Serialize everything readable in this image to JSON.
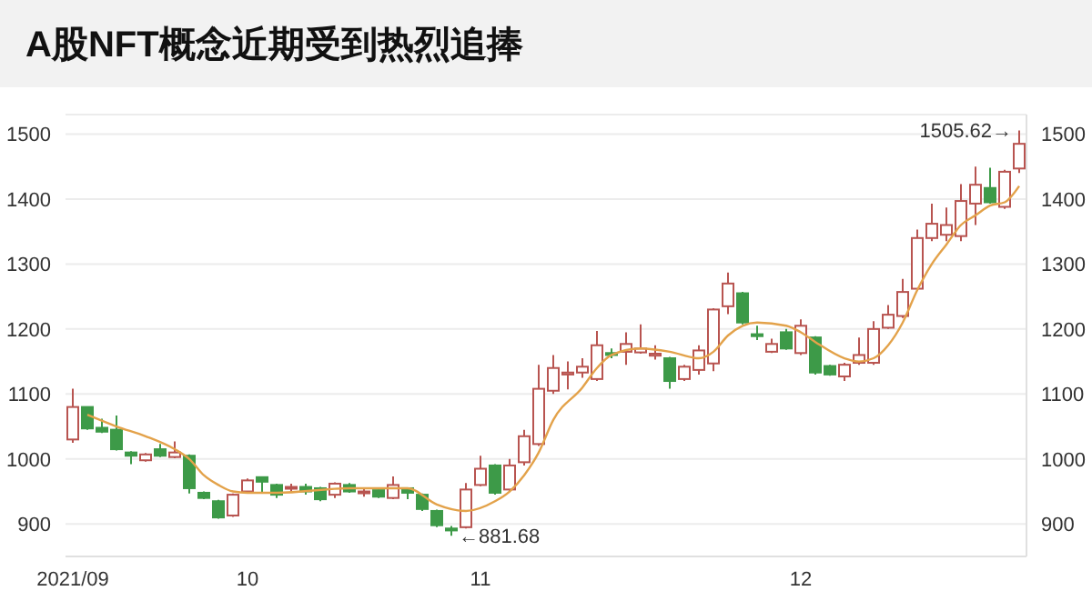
{
  "chart_data": {
    "type": "candlestick",
    "title": "A股NFT概念近期受到热烈追捧",
    "categories": [
      "2021/09",
      null,
      null,
      null,
      null,
      null,
      null,
      null,
      null,
      null,
      null,
      null,
      "10",
      null,
      null,
      null,
      null,
      null,
      null,
      null,
      null,
      null,
      null,
      null,
      null,
      null,
      null,
      null,
      "11",
      null,
      null,
      null,
      null,
      null,
      null,
      null,
      null,
      null,
      null,
      null,
      null,
      null,
      null,
      null,
      null,
      null,
      null,
      null,
      null,
      null,
      "12",
      null,
      null,
      null,
      null,
      null,
      null,
      null,
      null,
      null,
      null,
      null,
      null,
      null,
      null,
      null
    ],
    "ohlc": [
      [
        1030,
        1108,
        1025,
        1080
      ],
      [
        1080,
        1080,
        1045,
        1047
      ],
      [
        1048,
        1062,
        1040,
        1042
      ],
      [
        1045,
        1067,
        1013,
        1015
      ],
      [
        1010,
        1012,
        992,
        1005
      ],
      [
        998,
        1009,
        996,
        1007
      ],
      [
        1015,
        1023,
        1003,
        1005
      ],
      [
        1003,
        1027,
        1001,
        1010
      ],
      [
        1005,
        1007,
        947,
        955
      ],
      [
        948,
        950,
        938,
        940
      ],
      [
        935,
        937,
        908,
        910
      ],
      [
        913,
        947,
        911,
        945
      ],
      [
        950,
        970,
        948,
        967
      ],
      [
        972,
        973,
        947,
        965
      ],
      [
        960,
        962,
        940,
        945
      ],
      [
        955,
        962,
        948,
        957
      ],
      [
        957,
        962,
        945,
        950
      ],
      [
        955,
        957,
        935,
        938
      ],
      [
        945,
        964,
        940,
        962
      ],
      [
        960,
        963,
        948,
        950
      ],
      [
        948,
        955,
        942,
        950
      ],
      [
        952,
        953,
        940,
        942
      ],
      [
        940,
        973,
        938,
        960
      ],
      [
        955,
        956,
        938,
        948
      ],
      [
        945,
        947,
        920,
        923
      ],
      [
        920,
        922,
        895,
        898
      ],
      [
        893,
        897,
        881.68,
        890
      ],
      [
        895,
        963,
        893,
        953
      ],
      [
        960,
        1005,
        958,
        985
      ],
      [
        990,
        992,
        945,
        948
      ],
      [
        953,
        1000,
        950,
        990
      ],
      [
        995,
        1045,
        990,
        1035
      ],
      [
        1023,
        1145,
        1020,
        1108
      ],
      [
        1105,
        1160,
        1100,
        1140
      ],
      [
        1130,
        1150,
        1107,
        1133
      ],
      [
        1133,
        1155,
        1125,
        1142
      ],
      [
        1123,
        1197,
        1120,
        1175
      ],
      [
        1163,
        1170,
        1155,
        1160
      ],
      [
        1165,
        1195,
        1145,
        1177
      ],
      [
        1164,
        1207,
        1162,
        1170
      ],
      [
        1159,
        1175,
        1153,
        1162
      ],
      [
        1155,
        1157,
        1108,
        1120
      ],
      [
        1123,
        1145,
        1120,
        1142
      ],
      [
        1137,
        1175,
        1130,
        1167
      ],
      [
        1147,
        1232,
        1135,
        1230
      ],
      [
        1235,
        1287,
        1223,
        1270
      ],
      [
        1255,
        1257,
        1207,
        1210
      ],
      [
        1192,
        1205,
        1183,
        1189
      ],
      [
        1165,
        1185,
        1163,
        1177
      ],
      [
        1195,
        1200,
        1168,
        1170
      ],
      [
        1163,
        1215,
        1160,
        1205
      ],
      [
        1187,
        1189,
        1130,
        1133
      ],
      [
        1143,
        1145,
        1128,
        1130
      ],
      [
        1127,
        1148,
        1120,
        1145
      ],
      [
        1148,
        1187,
        1145,
        1160
      ],
      [
        1148,
        1212,
        1145,
        1200
      ],
      [
        1202,
        1237,
        1200,
        1222
      ],
      [
        1220,
        1277,
        1217,
        1257
      ],
      [
        1262,
        1353,
        1260,
        1340
      ],
      [
        1340,
        1393,
        1335,
        1362
      ],
      [
        1345,
        1387,
        1335,
        1360
      ],
      [
        1343,
        1423,
        1335,
        1397
      ],
      [
        1393,
        1450,
        1360,
        1422
      ],
      [
        1417,
        1448,
        1393,
        1395
      ],
      [
        1388,
        1445,
        1385,
        1442
      ],
      [
        1447,
        1505.62,
        1440,
        1485
      ]
    ],
    "colors": [
      "#b85450",
      "#3d9a48",
      "#3d9a48",
      "#3d9a48",
      "#3d9a48",
      "#b85450",
      "#3d9a48",
      "#b85450",
      "#3d9a48",
      "#3d9a48",
      "#3d9a48",
      "#b85450",
      "#b85450",
      "#3d9a48",
      "#3d9a48",
      "#b85450",
      "#3d9a48",
      "#3d9a48",
      "#b85450",
      "#3d9a48",
      "#b85450",
      "#3d9a48",
      "#b85450",
      "#3d9a48",
      "#3d9a48",
      "#3d9a48",
      "#3d9a48",
      "#b85450",
      "#b85450",
      "#3d9a48",
      "#b85450",
      "#b85450",
      "#b85450",
      "#b85450",
      "#b85450",
      "#b85450",
      "#b85450",
      "#3d9a48",
      "#b85450",
      "#b85450",
      "#b85450",
      "#3d9a48",
      "#b85450",
      "#b85450",
      "#b85450",
      "#b85450",
      "#3d9a48",
      "#3d9a48",
      "#b85450",
      "#3d9a48",
      "#b85450",
      "#3d9a48",
      "#3d9a48",
      "#b85450",
      "#b85450",
      "#b85450",
      "#b85450",
      "#b85450",
      "#b85450",
      "#b85450",
      "#b85450",
      "#b85450",
      "#b85450",
      "#3d9a48",
      "#b85450",
      "#b85450"
    ],
    "series": [
      {
        "type": "line",
        "color": "#e3a24a",
        "values": [
          null,
          1068,
          null,
          1050,
          null,
          1035,
          null,
          1015,
          1000,
          975,
          960,
          950,
          948,
          null,
          948,
          null,
          null,
          null,
          null,
          955,
          null,
          955,
          null,
          955,
          null,
          930,
          null,
          920,
          null,
          935,
          950,
          975,
          1010,
          1060,
          null,
          1110,
          1140,
          1160,
          null,
          1170,
          null,
          1165,
          null,
          1155,
          1165,
          1190,
          1205,
          1210,
          null,
          1205,
          1195,
          1180,
          null,
          1155,
          1150,
          1155,
          1175,
          1210,
          1260,
          1300,
          1330,
          1360,
          1375,
          1390,
          1395,
          1420
        ]
      }
    ],
    "ylim": [
      850,
      1530
    ],
    "yticks": [
      900,
      1000,
      1100,
      1200,
      1300,
      1400,
      1500
    ],
    "grid": "y",
    "y2lim": [
      850,
      1530
    ],
    "y2ticks": [
      900,
      1000,
      1100,
      1200,
      1300,
      1400,
      1500
    ],
    "annotations": [
      "1505.62→",
      "←881.68"
    ]
  }
}
